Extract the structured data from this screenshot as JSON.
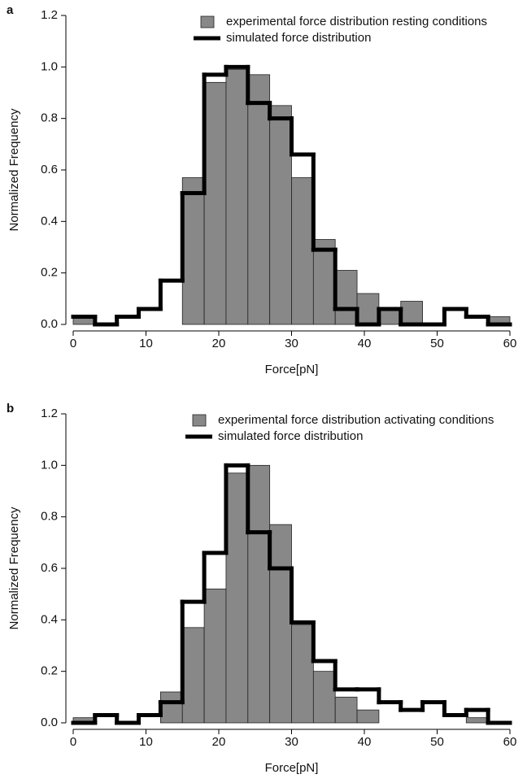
{
  "chart_data": [
    {
      "type": "histogram",
      "label": "a",
      "xlabel": "Force[pN]",
      "ylabel": "Normalized Frequency",
      "bins": [
        0,
        3,
        6,
        9,
        12,
        15,
        18,
        21,
        24,
        27,
        30,
        33,
        36,
        39,
        42,
        45,
        48,
        51,
        54,
        57,
        60
      ],
      "series": [
        {
          "name": "experimental force distribution resting conditions",
          "color": "#888888",
          "values": [
            0.03,
            0,
            0,
            0,
            0,
            0.57,
            0.94,
            0.99,
            0.97,
            0.85,
            0.57,
            0.33,
            0.21,
            0.12,
            0.06,
            0.09,
            0,
            0,
            0,
            0.03
          ]
        },
        {
          "name": "simulated force distribution",
          "color": "#000000",
          "values": [
            0.03,
            0,
            0.03,
            0.06,
            0.17,
            0.51,
            0.97,
            1.0,
            0.86,
            0.8,
            0.66,
            0.29,
            0.06,
            0,
            0.06,
            0,
            0,
            0.06,
            0.03,
            0
          ]
        }
      ],
      "xlim": [
        0,
        60
      ],
      "xticks": [
        0,
        10,
        20,
        30,
        40,
        50,
        60
      ],
      "ylim": [
        0,
        1.2
      ],
      "yticks": [
        {
          "value": 0,
          "label": "0.0"
        },
        {
          "value": 0.2,
          "label": "0.2"
        },
        {
          "value": 0.4,
          "label": "0.4"
        },
        {
          "value": 0.6,
          "label": "0.6"
        },
        {
          "value": 0.8,
          "label": "0.8"
        },
        {
          "value": 1,
          "label": "1.0"
        },
        {
          "value": 1.2,
          "label": "1.2"
        }
      ]
    },
    {
      "type": "histogram",
      "label": "b",
      "xlabel": "Force[pN]",
      "ylabel": "Normalized Frequency",
      "bins": [
        0,
        3,
        6,
        9,
        12,
        15,
        18,
        21,
        24,
        27,
        30,
        33,
        36,
        39,
        42,
        45,
        48,
        51,
        54,
        57,
        60
      ],
      "series": [
        {
          "name": "experimental force distribution activating conditions",
          "color": "#888888",
          "values": [
            0.02,
            0,
            0,
            0,
            0.12,
            0.37,
            0.52,
            0.97,
            1.0,
            0.77,
            0.38,
            0.2,
            0.1,
            0.05,
            0,
            0,
            0,
            0,
            0.02,
            0
          ]
        },
        {
          "name": "simulated force distribution",
          "color": "#000000",
          "values": [
            0,
            0.03,
            0,
            0.03,
            0.08,
            0.47,
            0.66,
            1.0,
            0.74,
            0.6,
            0.39,
            0.24,
            0.13,
            0.13,
            0.08,
            0.05,
            0.08,
            0.03,
            0.05,
            0
          ]
        }
      ],
      "xlim": [
        0,
        60
      ],
      "xticks": [
        0,
        10,
        20,
        30,
        40,
        50,
        60
      ],
      "ylim": [
        0,
        1.2
      ],
      "yticks": [
        {
          "value": 0,
          "label": "0.0"
        },
        {
          "value": 0.2,
          "label": "0.2"
        },
        {
          "value": 0.4,
          "label": "0.4"
        },
        {
          "value": 0.6,
          "label": "0.6"
        },
        {
          "value": 0.8,
          "label": "0.8"
        },
        {
          "value": 1,
          "label": "1.0"
        },
        {
          "value": 1.2,
          "label": "1.2"
        }
      ]
    }
  ]
}
